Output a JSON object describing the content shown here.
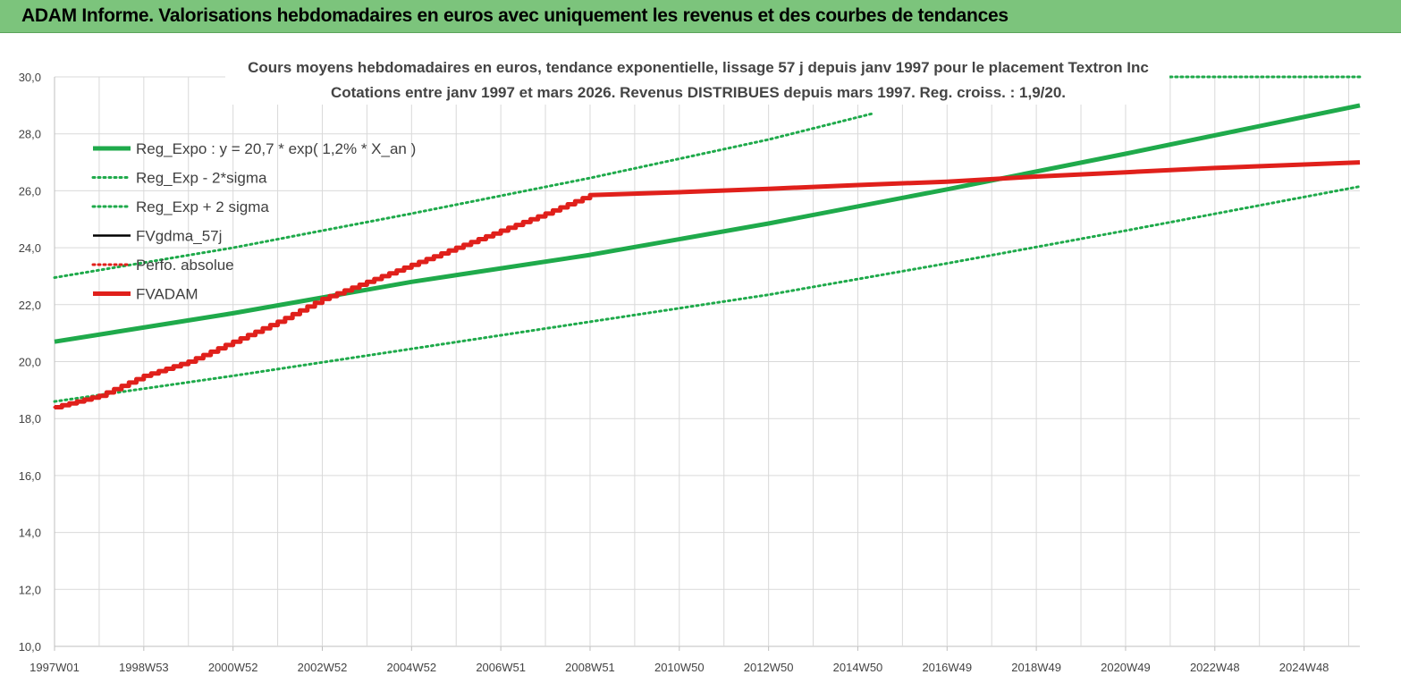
{
  "header": {
    "title": "ADAM Informe. Valorisations hebdomadaires en euros avec uniquement les revenus et des courbes de tendances"
  },
  "chart_data": {
    "type": "line",
    "title_line1": "Cours moyens hebdomadaires en euros, tendance exponentielle, lissage 57 j depuis janv 1997 pour le placement Textron Inc",
    "title_line2": "Cotations entre janv 1997 et mars 2026. Revenus DISTRIBUES depuis mars 1997. Reg. croiss. : 1,9/20.",
    "xlabel": "",
    "ylabel": "",
    "ylim": [
      10,
      30
    ],
    "xlim": [
      1997.0,
      2026.25
    ],
    "y_ticks": [
      "10,0",
      "12,0",
      "14,0",
      "16,0",
      "18,0",
      "20,0",
      "22,0",
      "24,0",
      "26,0",
      "28,0",
      "30,0"
    ],
    "x_ticks": [
      {
        "label": "1997W01",
        "x": 1997.0
      },
      {
        "label": "1998W53",
        "x": 1999.0
      },
      {
        "label": "2000W52",
        "x": 2001.0
      },
      {
        "label": "2002W52",
        "x": 2003.0
      },
      {
        "label": "2004W52",
        "x": 2005.0
      },
      {
        "label": "2006W51",
        "x": 2007.0
      },
      {
        "label": "2008W51",
        "x": 2009.0
      },
      {
        "label": "2010W50",
        "x": 2011.0
      },
      {
        "label": "2012W50",
        "x": 2013.0
      },
      {
        "label": "2014W50",
        "x": 2015.0
      },
      {
        "label": "2016W49",
        "x": 2017.0
      },
      {
        "label": "2018W49",
        "x": 2019.0
      },
      {
        "label": "2020W49",
        "x": 2021.0
      },
      {
        "label": "2022W48",
        "x": 2023.0
      },
      {
        "label": "2024W48",
        "x": 2025.0
      }
    ],
    "grid": true,
    "legend_position": "top-left",
    "series": [
      {
        "name": "Reg_Expo : y = 20,7 * exp( 1,2% *  X_an )",
        "color": "#1faa4b",
        "style": "solid-thick",
        "points": [
          [
            1997.0,
            20.7
          ],
          [
            2001.0,
            21.7
          ],
          [
            2005.0,
            22.8
          ],
          [
            2009.0,
            23.75
          ],
          [
            2013.0,
            24.85
          ],
          [
            2017.0,
            26.05
          ],
          [
            2021.0,
            27.3
          ],
          [
            2026.25,
            29.0
          ]
        ]
      },
      {
        "name": "Reg_Exp - 2*sigma",
        "color": "#1faa4b",
        "style": "dotted",
        "points": [
          [
            1997.0,
            18.6
          ],
          [
            2001.0,
            19.5
          ],
          [
            2005.0,
            20.45
          ],
          [
            2009.0,
            21.4
          ],
          [
            2013.0,
            22.35
          ],
          [
            2017.0,
            23.45
          ],
          [
            2021.0,
            24.6
          ],
          [
            2026.25,
            26.15
          ]
        ]
      },
      {
        "name": "Reg_Exp + 2 sigma",
        "color": "#1faa4b",
        "style": "dotted",
        "points": [
          [
            1997.0,
            22.95
          ],
          [
            2001.0,
            24.0
          ],
          [
            2005.0,
            25.2
          ],
          [
            2009.0,
            26.45
          ],
          [
            2013.0,
            27.8
          ],
          [
            2015.3,
            28.7
          ]
        ]
      },
      {
        "name": "FVgdma_57j",
        "color": "#000000",
        "style": "solid",
        "points": []
      },
      {
        "name": "Perfo. absolue",
        "color": "#e0201b",
        "style": "dotted",
        "points": [
          [
            1997.0,
            18.4
          ],
          [
            1997.2,
            18.4
          ]
        ]
      },
      {
        "name": "FVADAM",
        "color": "#e0201b",
        "style": "solid-thick",
        "points": [
          [
            1997.0,
            18.4
          ],
          [
            1998.0,
            18.8
          ],
          [
            1999.0,
            19.5
          ],
          [
            2000.0,
            20.0
          ],
          [
            2001.0,
            20.7
          ],
          [
            2002.0,
            21.4
          ],
          [
            2003.0,
            22.2
          ],
          [
            2004.0,
            22.8
          ],
          [
            2005.0,
            23.4
          ],
          [
            2006.0,
            24.0
          ],
          [
            2007.0,
            24.6
          ],
          [
            2008.0,
            25.2
          ],
          [
            2009.0,
            25.85
          ],
          [
            2011.0,
            25.95
          ],
          [
            2013.0,
            26.07
          ],
          [
            2015.0,
            26.2
          ],
          [
            2017.0,
            26.32
          ],
          [
            2019.0,
            26.5
          ],
          [
            2021.0,
            26.65
          ],
          [
            2023.0,
            26.8
          ],
          [
            2026.25,
            27.0
          ]
        ]
      }
    ],
    "stray_dotted_segment": {
      "color": "#1faa4b",
      "points": [
        [
          2022.0,
          30.0
        ],
        [
          2026.25,
          30.0
        ]
      ]
    },
    "colors": {
      "banner": "#7cc47c",
      "grid": "#d9d9d9",
      "accent_corner": "#f3c21a"
    }
  }
}
